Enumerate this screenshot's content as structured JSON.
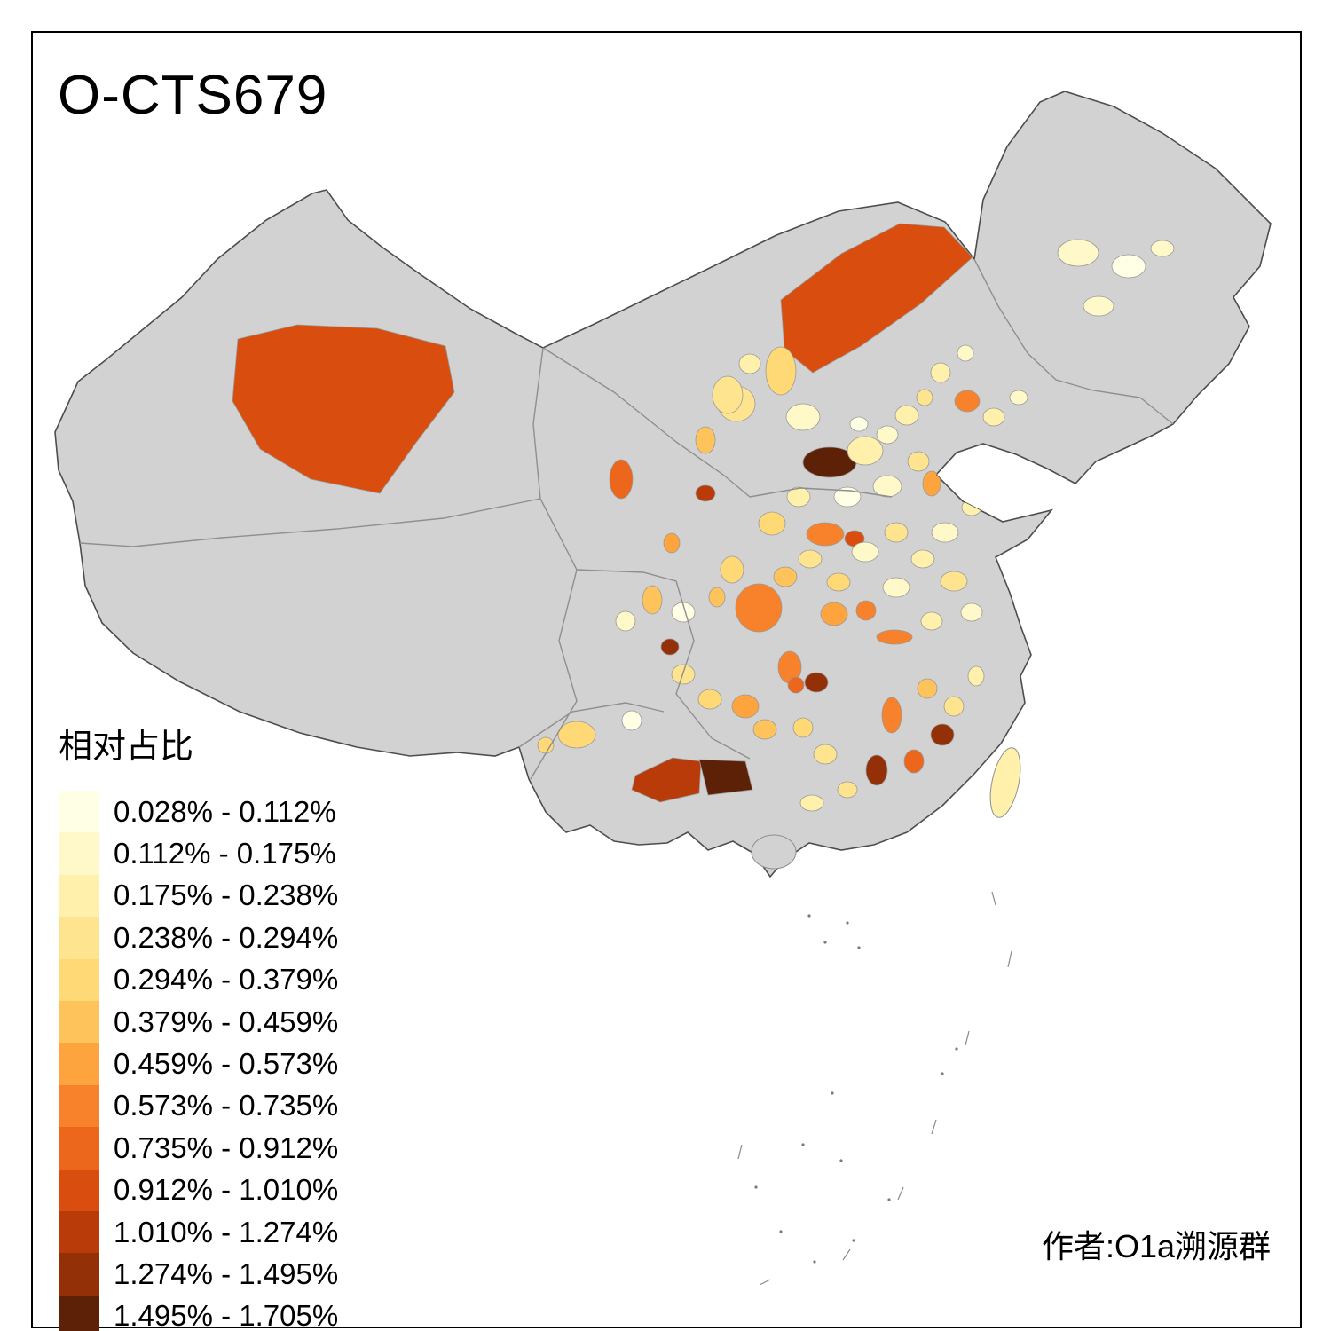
{
  "title": "O-CTS679",
  "credit": "作者:O1a溯源群",
  "legend": {
    "title": "相对占比",
    "classes": [
      {
        "label": "0.028% - 0.112%",
        "color": "#FFFFE5"
      },
      {
        "label": "0.112% - 0.175%",
        "color": "#FFF8C8"
      },
      {
        "label": "0.175% - 0.238%",
        "color": "#FFF0AB"
      },
      {
        "label": "0.238% - 0.294%",
        "color": "#FEE48F"
      },
      {
        "label": "0.294% - 0.379%",
        "color": "#FED976"
      },
      {
        "label": "0.379% - 0.459%",
        "color": "#FEC45B"
      },
      {
        "label": "0.459% - 0.573%",
        "color": "#FEA43E"
      },
      {
        "label": "0.573% - 0.735%",
        "color": "#F8822B"
      },
      {
        "label": "0.735% - 0.912%",
        "color": "#EC661B"
      },
      {
        "label": "0.912% - 1.010%",
        "color": "#D94D0E"
      },
      {
        "label": "1.010% - 1.274%",
        "color": "#B83B09"
      },
      {
        "label": "1.274% - 1.495%",
        "color": "#933008"
      },
      {
        "label": "1.495% - 1.705%",
        "color": "#5C2106"
      }
    ]
  },
  "map": {
    "base_fill": "#D2D2D2",
    "border_color": "#8F8F8F",
    "outline_color": "#4D4D4D",
    "background": "#FFFFFF"
  }
}
